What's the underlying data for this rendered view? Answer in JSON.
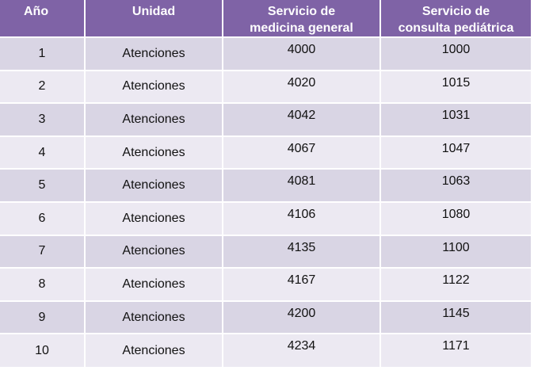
{
  "table": {
    "headers": {
      "year": "Año",
      "unit": "Unidad",
      "general_line1": "Servicio de",
      "general_line2": "medicina general",
      "pediatric_line1": "Servicio de",
      "pediatric_line2": "consulta pediátrica"
    },
    "rows": [
      {
        "year": "1",
        "unit": "Atenciones",
        "general": "4000",
        "pediatric": "1000"
      },
      {
        "year": "2",
        "unit": "Atenciones",
        "general": "4020",
        "pediatric": "1015"
      },
      {
        "year": "3",
        "unit": "Atenciones",
        "general": "4042",
        "pediatric": "1031"
      },
      {
        "year": "4",
        "unit": "Atenciones",
        "general": "4067",
        "pediatric": "1047"
      },
      {
        "year": "5",
        "unit": "Atenciones",
        "general": "4081",
        "pediatric": "1063"
      },
      {
        "year": "6",
        "unit": "Atenciones",
        "general": "4106",
        "pediatric": "1080"
      },
      {
        "year": "7",
        "unit": "Atenciones",
        "general": "4135",
        "pediatric": "1100"
      },
      {
        "year": "8",
        "unit": "Atenciones",
        "general": "4167",
        "pediatric": "1122"
      },
      {
        "year": "9",
        "unit": "Atenciones",
        "general": "4200",
        "pediatric": "1145"
      },
      {
        "year": "10",
        "unit": "Atenciones",
        "general": "4234",
        "pediatric": "1171"
      }
    ],
    "colors": {
      "header_bg": "#7f63a6",
      "row_odd": "#d9d5e4",
      "row_even": "#ece9f2"
    }
  }
}
